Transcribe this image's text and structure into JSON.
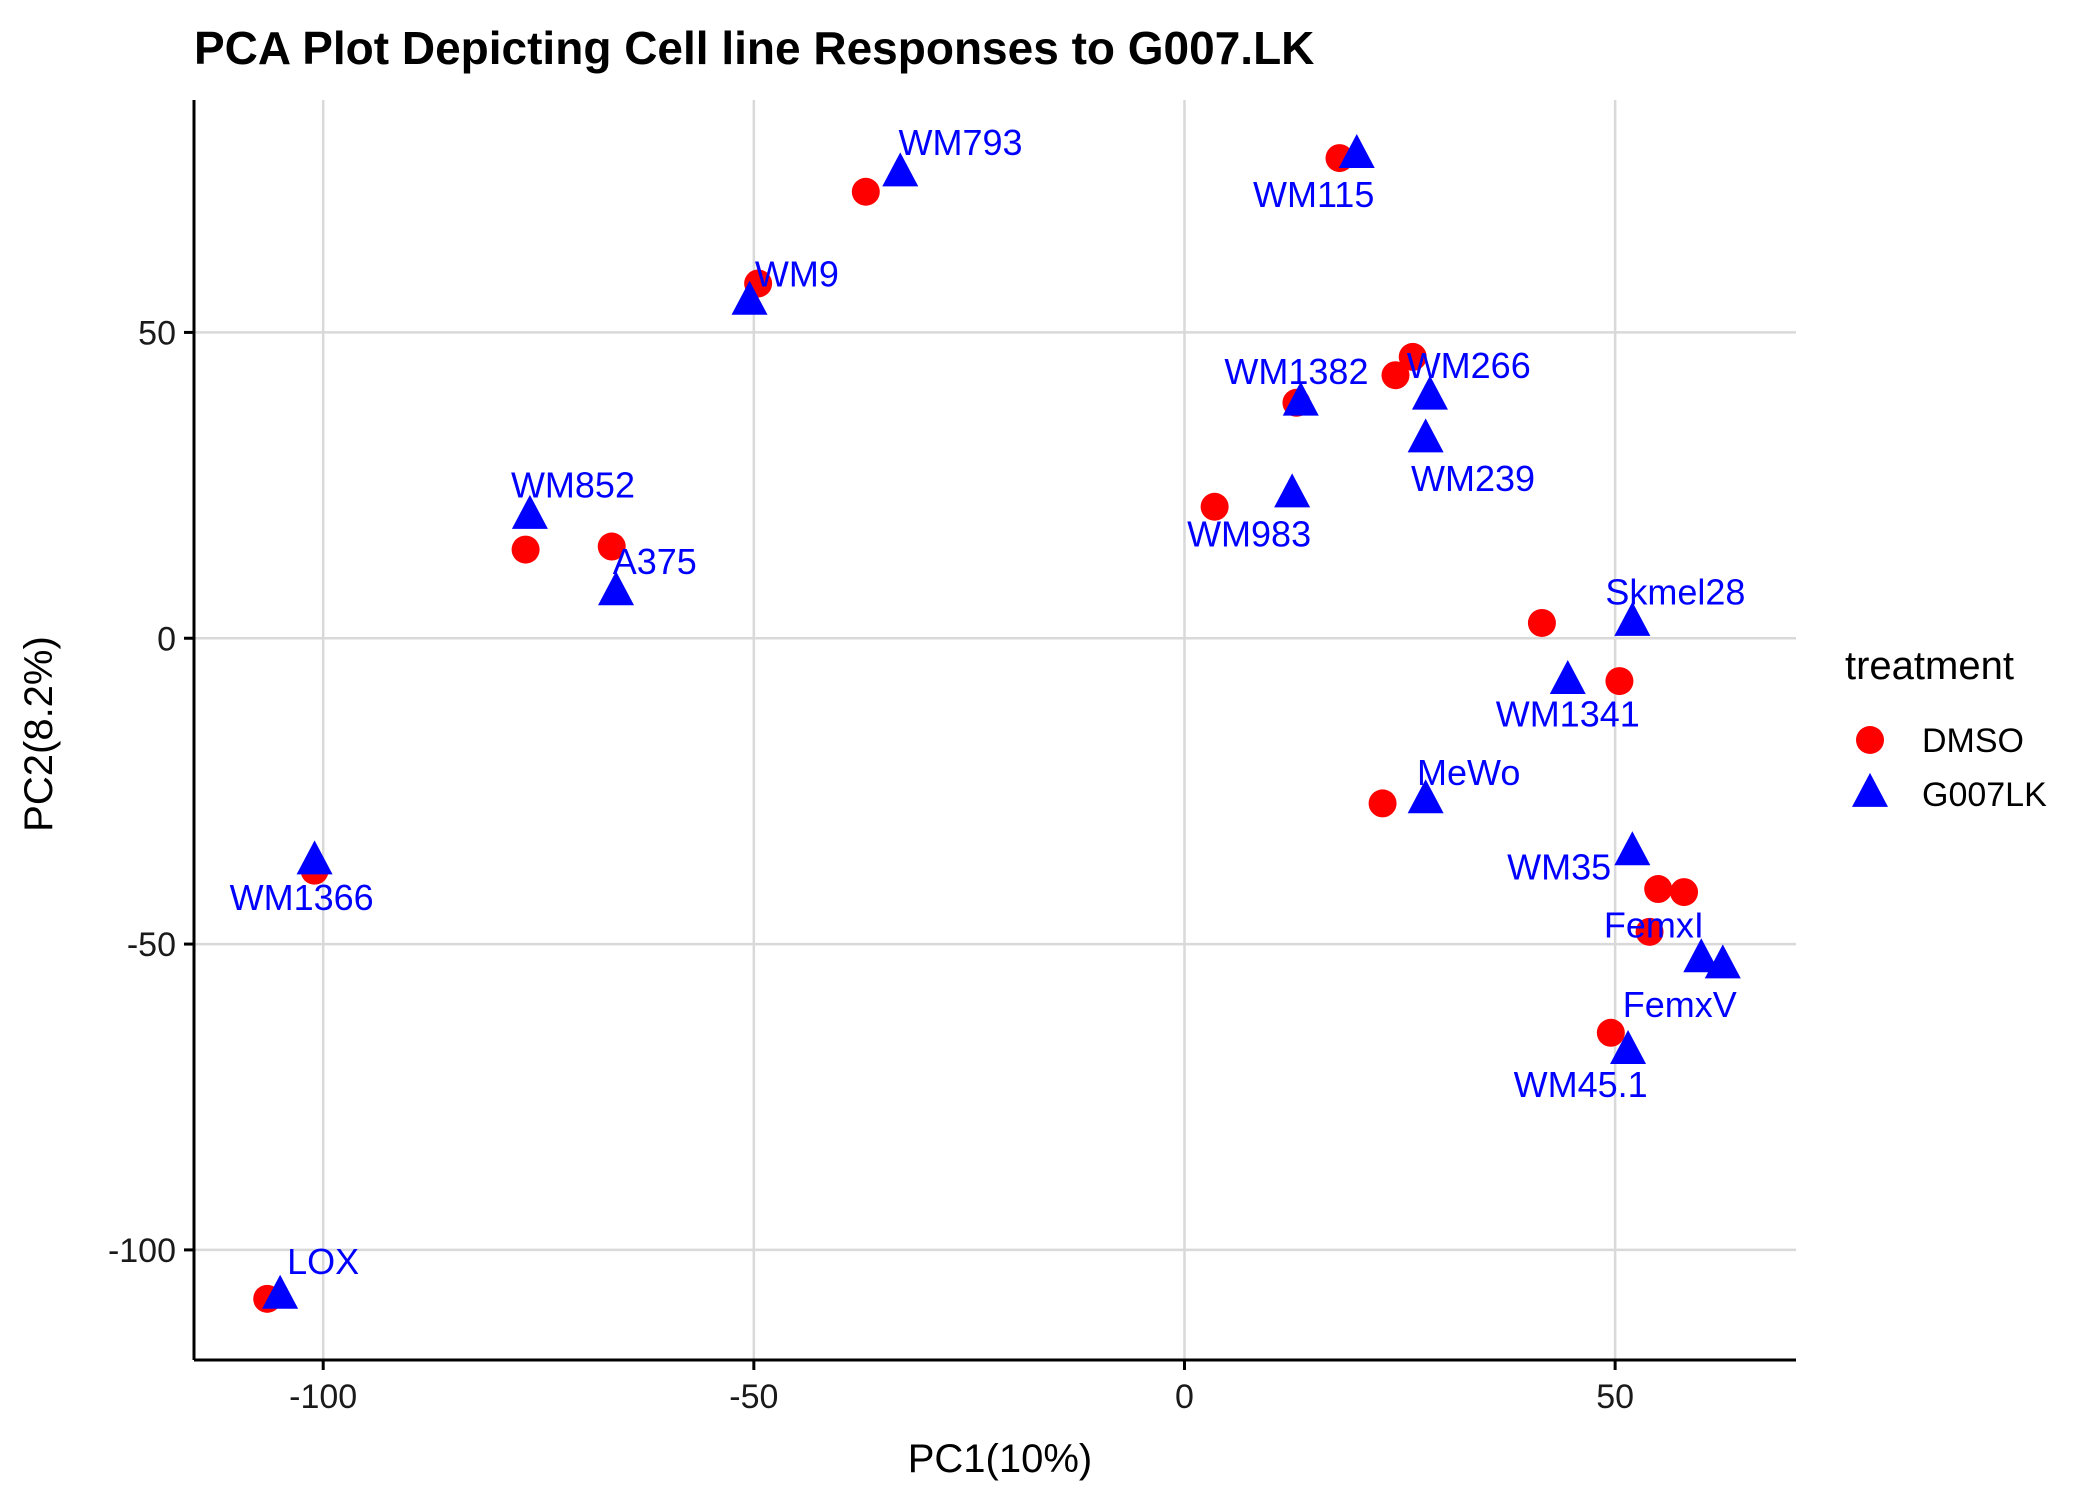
{
  "chart_data": {
    "type": "scatter",
    "title": "PCA Plot Depicting Cell line Responses to G007.LK",
    "xlabel": "PC1(10%)",
    "ylabel": "PC2(8.2%)",
    "xlim": [
      -115,
      71
    ],
    "ylim": [
      -118,
      88
    ],
    "x_ticks": [
      -100,
      -50,
      0,
      50
    ],
    "y_ticks": [
      -100,
      -50,
      0,
      50
    ],
    "grid": true,
    "legend": {
      "title": "treatment",
      "position": "right",
      "entries": [
        {
          "name": "DMSO",
          "shape": "circle",
          "color": "#ff0000"
        },
        {
          "name": "G007LK",
          "shape": "triangle",
          "color": "#0000ff"
        }
      ]
    },
    "series": [
      {
        "name": "DMSO",
        "shape": "circle",
        "color": "#ff0000",
        "points": [
          {
            "x": -37,
            "y": 73
          },
          {
            "x": -49.5,
            "y": 58
          },
          {
            "x": 18,
            "y": 78.5
          },
          {
            "x": 26.5,
            "y": 46
          },
          {
            "x": 24.5,
            "y": 43
          },
          {
            "x": 13,
            "y": 38.5
          },
          {
            "x": 3.5,
            "y": 21.5
          },
          {
            "x": -76.5,
            "y": 14.5
          },
          {
            "x": -66.5,
            "y": 15
          },
          {
            "x": 41.5,
            "y": 2.5
          },
          {
            "x": 50.5,
            "y": -7
          },
          {
            "x": 23,
            "y": -27
          },
          {
            "x": 55,
            "y": -41
          },
          {
            "x": 58,
            "y": -41.5
          },
          {
            "x": 54,
            "y": -48
          },
          {
            "x": 49.5,
            "y": -64.5
          },
          {
            "x": -101,
            "y": -38
          },
          {
            "x": -106.5,
            "y": -108
          }
        ]
      },
      {
        "name": "G007LK",
        "shape": "triangle",
        "color": "#0000ff",
        "points": [
          {
            "x": -33,
            "y": 76
          },
          {
            "x": -50.5,
            "y": 55
          },
          {
            "x": 20,
            "y": 79
          },
          {
            "x": 28.5,
            "y": 39.5
          },
          {
            "x": 13.5,
            "y": 38.5
          },
          {
            "x": 28,
            "y": 32.5
          },
          {
            "x": 12.5,
            "y": 23.5
          },
          {
            "x": -76,
            "y": 20
          },
          {
            "x": -66,
            "y": 7.5
          },
          {
            "x": 52,
            "y": 2.5
          },
          {
            "x": 44.5,
            "y": -7
          },
          {
            "x": 28,
            "y": -26.5
          },
          {
            "x": 52,
            "y": -35
          },
          {
            "x": 60,
            "y": -52.5
          },
          {
            "x": 62.5,
            "y": -53.5
          },
          {
            "x": 51.5,
            "y": -67.5
          },
          {
            "x": -101,
            "y": -36.5
          },
          {
            "x": -105,
            "y": -107.5
          }
        ]
      }
    ],
    "annotations": [
      {
        "text": "WM793",
        "x": -26,
        "y": 81
      },
      {
        "text": "WM9",
        "x": -45,
        "y": 59.5
      },
      {
        "text": "WM115",
        "x": 15,
        "y": 72.5
      },
      {
        "text": "WM1382",
        "x": 13,
        "y": 43.5
      },
      {
        "text": "WM266",
        "x": 33,
        "y": 44.5
      },
      {
        "text": "WM239",
        "x": 33.5,
        "y": 26
      },
      {
        "text": "WM983",
        "x": 7.5,
        "y": 17
      },
      {
        "text": "WM852",
        "x": -71,
        "y": 25
      },
      {
        "text": "A375",
        "x": -61.5,
        "y": 12.5
      },
      {
        "text": "Skmel28",
        "x": 57,
        "y": 7.5
      },
      {
        "text": "WM1341",
        "x": 44.5,
        "y": -12.5
      },
      {
        "text": "MeWo",
        "x": 33,
        "y": -22
      },
      {
        "text": "WM35",
        "x": 43.5,
        "y": -37.5
      },
      {
        "text": "FemxI",
        "x": 54.5,
        "y": -47
      },
      {
        "text": "FemxV",
        "x": 57.5,
        "y": -60
      },
      {
        "text": "WM45.1",
        "x": 46,
        "y": -73
      },
      {
        "text": "WM1366",
        "x": -102.5,
        "y": -42.5
      },
      {
        "text": "LOX",
        "x": -100,
        "y": -102
      }
    ]
  }
}
